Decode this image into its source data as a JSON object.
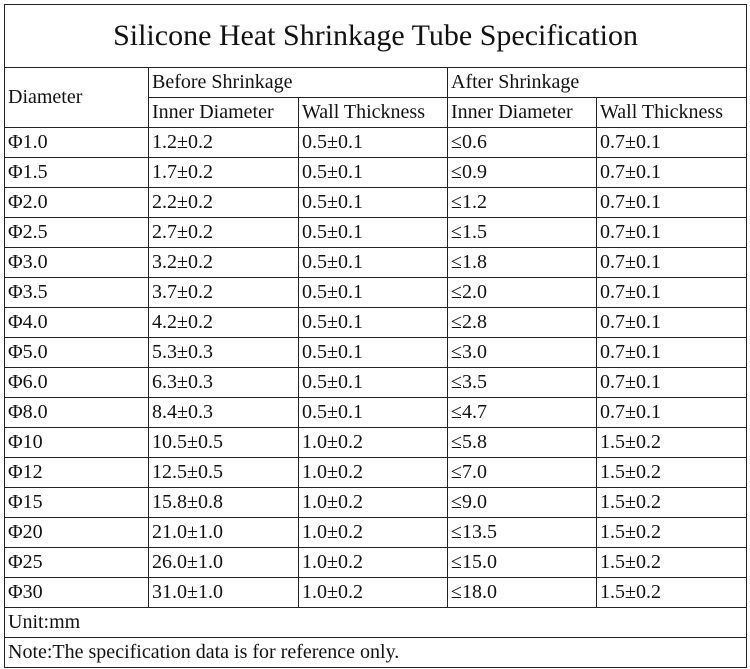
{
  "title": "Silicone Heat Shrinkage Tube Specification",
  "table": {
    "header": {
      "diameter": "Diameter",
      "before": "Before Shrinkage",
      "after": "After Shrinkage",
      "columns": [
        "Inner Diameter",
        "Wall Thickness",
        "Inner Diameter",
        "Wall Thickness"
      ]
    },
    "rows": [
      [
        "Φ1.0",
        "1.2±0.2",
        "0.5±0.1",
        "≤0.6",
        "0.7±0.1"
      ],
      [
        "Φ1.5",
        "1.7±0.2",
        "0.5±0.1",
        "≤0.9",
        "0.7±0.1"
      ],
      [
        "Φ2.0",
        "2.2±0.2",
        "0.5±0.1",
        "≤1.2",
        "0.7±0.1"
      ],
      [
        "Φ2.5",
        "2.7±0.2",
        "0.5±0.1",
        "≤1.5",
        "0.7±0.1"
      ],
      [
        "Φ3.0",
        "3.2±0.2",
        "0.5±0.1",
        "≤1.8",
        "0.7±0.1"
      ],
      [
        "Φ3.5",
        "3.7±0.2",
        "0.5±0.1",
        "≤2.0",
        "0.7±0.1"
      ],
      [
        "Φ4.0",
        "4.2±0.2",
        "0.5±0.1",
        "≤2.8",
        "0.7±0.1"
      ],
      [
        "Φ5.0",
        "5.3±0.3",
        "0.5±0.1",
        "≤3.0",
        "0.7±0.1"
      ],
      [
        "Φ6.0",
        "6.3±0.3",
        "0.5±0.1",
        "≤3.5",
        "0.7±0.1"
      ],
      [
        "Φ8.0",
        "8.4±0.3",
        "0.5±0.1",
        "≤4.7",
        "0.7±0.1"
      ],
      [
        "Φ10",
        "10.5±0.5",
        "1.0±0.2",
        "≤5.8",
        "1.5±0.2"
      ],
      [
        "Φ12",
        "12.5±0.5",
        "1.0±0.2",
        "≤7.0",
        "1.5±0.2"
      ],
      [
        "Φ15",
        "15.8±0.8",
        "1.0±0.2",
        "≤9.0",
        "1.5±0.2"
      ],
      [
        "Φ20",
        "21.0±1.0",
        "1.0±0.2",
        "≤13.5",
        "1.5±0.2"
      ],
      [
        "Φ25",
        "26.0±1.0",
        "1.0±0.2",
        "≤15.0",
        "1.5±0.2"
      ],
      [
        "Φ30",
        "31.0±1.0",
        "1.0±0.2",
        "≤18.0",
        "1.5±0.2"
      ]
    ]
  },
  "footer": {
    "unit": "Unit:mm",
    "note": "Note:The specification data is for reference only."
  }
}
